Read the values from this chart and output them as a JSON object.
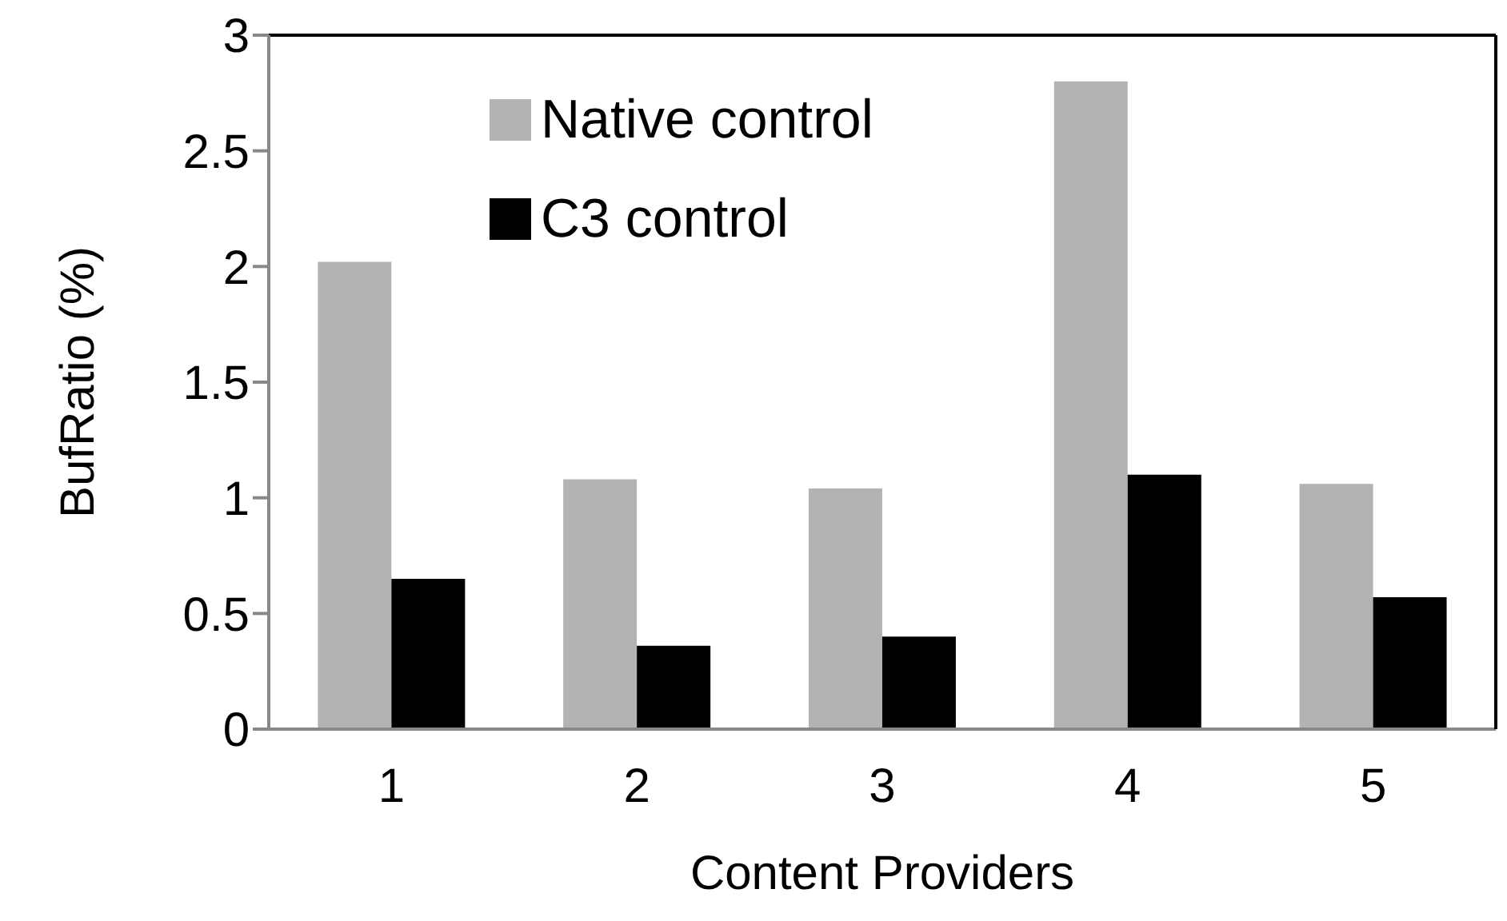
{
  "chart_data": {
    "type": "bar",
    "xlabel": "Content Providers",
    "ylabel": "BufRatio (%)",
    "categories": [
      "1",
      "2",
      "3",
      "4",
      "5"
    ],
    "series": [
      {
        "name": "Native control",
        "color": "#b3b3b3",
        "values": [
          2.02,
          1.08,
          1.04,
          2.8,
          1.06
        ]
      },
      {
        "name": "C3 control",
        "color": "#000000",
        "values": [
          0.65,
          0.36,
          0.4,
          1.1,
          0.57
        ]
      }
    ],
    "ylim": [
      0,
      3
    ],
    "yticks": [
      0,
      0.5,
      1,
      1.5,
      2,
      2.5,
      3
    ],
    "grid": false,
    "legend": "top left"
  }
}
